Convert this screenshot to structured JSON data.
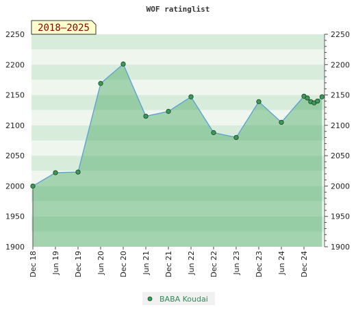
{
  "chart_data": {
    "type": "area",
    "title": "WOF ratinglist",
    "period_badge": "2018–2025",
    "xlabel": "",
    "ylabel": "",
    "ylim": [
      1900,
      2250
    ],
    "y_ticks": [
      1900,
      1950,
      2000,
      2050,
      2100,
      2150,
      2200,
      2250
    ],
    "x_tick_labels": [
      "Dec 18",
      "Jun 19",
      "Dec 19",
      "Jun 20",
      "Dec 20",
      "Jun 21",
      "Dec 21",
      "Jun 22",
      "Dec 22",
      "Jun 23",
      "Dec 23",
      "Jun 24",
      "Dec 24"
    ],
    "grid": true,
    "legend_position": "bottom-center",
    "colors": {
      "line": "#5a9fd4",
      "marker": "#3a9a5a",
      "band_light": "#eef6ee",
      "band_dark": "#d8ecdc",
      "badge_bg": "#ffffcc",
      "badge_text": "#8b0000",
      "legend_text": "#2e8b57"
    },
    "series": [
      {
        "name": "BABA Koudai",
        "x": [
          0,
          1,
          2,
          3,
          4,
          5,
          6,
          7,
          8,
          9,
          10,
          11,
          12,
          12.15,
          12.3,
          12.45,
          12.6,
          12.8
        ],
        "values": [
          2000,
          2022,
          2023,
          2169,
          2201,
          2115,
          2123,
          2147,
          2088,
          2080,
          2139,
          2105,
          2148,
          2145,
          2139,
          2137,
          2140,
          2147
        ]
      }
    ]
  }
}
